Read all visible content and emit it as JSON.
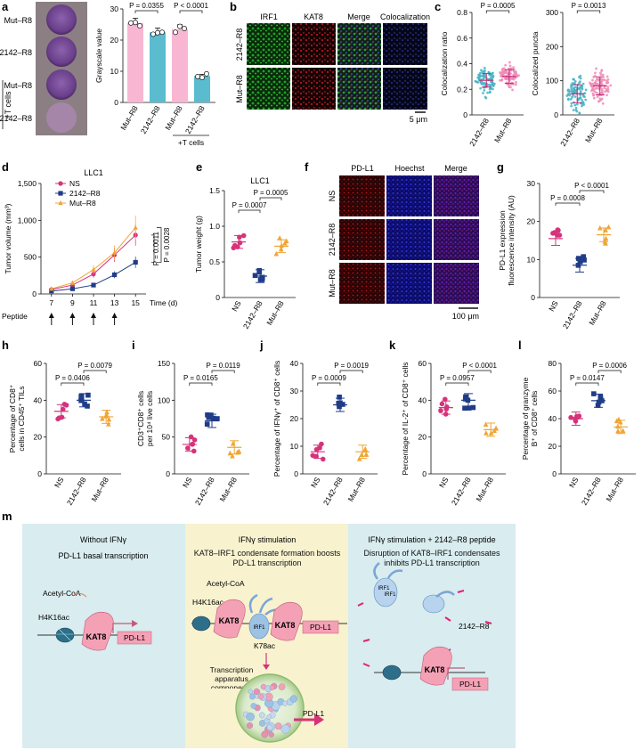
{
  "panels": {
    "a": {
      "letter": "a",
      "well_labels": [
        "Mut–R8",
        "2142–R8",
        "Mut–R8",
        "2142–R8"
      ],
      "tcells_label": "+T cells",
      "colors": {
        "pink": "#f8b6d2",
        "teal": "#5bbcd0",
        "well": "#6a3f8a"
      },
      "chart_data": {
        "type": "bar",
        "categories": [
          "Mut–R8",
          "2142–R8",
          "Mut–R8",
          "2142–R8"
        ],
        "values": [
          25.5,
          22.5,
          23.5,
          8.5
        ],
        "ylabel": "Grayscale value",
        "ylim": [
          0,
          30
        ],
        "yticks": [
          "0",
          "10",
          "20",
          "30"
        ],
        "xgroup_label": "+T cells",
        "annotations": [
          "P = 0.0355",
          "P < 0.0001"
        ]
      }
    },
    "b": {
      "letter": "b",
      "col_labels": [
        "IRF1",
        "KAT8",
        "Merge",
        "Colocalization"
      ],
      "row_labels": [
        "2142–R8",
        "Mut–R8"
      ],
      "scale_label": "5 μm"
    },
    "c": {
      "letter": "c",
      "charts": [
        {
          "type": "scatter",
          "categories": [
            "2142–R8",
            "Mut–R8"
          ],
          "means": [
            0.27,
            0.3
          ],
          "ylabel": "Colocalization ratio",
          "ylim": [
            0,
            0.8
          ],
          "yticks": [
            "0",
            "0.2",
            "0.4",
            "0.6",
            "0.8"
          ],
          "annotation": "P = 0.0005"
        },
        {
          "type": "scatter",
          "categories": [
            "2142–R8",
            "Mut–R8"
          ],
          "means": [
            62,
            85
          ],
          "ylabel": "Colocalized puncta",
          "ylim": [
            0,
            300
          ],
          "yticks": [
            "0",
            "100",
            "200",
            "300"
          ],
          "annotation": "P = 0.0013"
        }
      ]
    },
    "d": {
      "letter": "d",
      "chart_data": {
        "type": "line",
        "title": "LLC1",
        "x": [
          7,
          9,
          11,
          13,
          15
        ],
        "xticks": [
          "7",
          "9",
          "11",
          "13",
          "15"
        ],
        "series": [
          {
            "name": "NS",
            "values": [
              60,
              120,
              270,
              530,
              800
            ],
            "color": "#d6337a"
          },
          {
            "name": "2142–R8",
            "values": [
              40,
              70,
              120,
              260,
              430
            ],
            "color": "#1f3c88"
          },
          {
            "name": "Mut–R8",
            "values": [
              70,
              150,
              330,
              560,
              900
            ],
            "color": "#f0a535"
          }
        ],
        "ylabel": "Tumor volume (mm³)",
        "ylim": [
          0,
          1500
        ],
        "yticks": [
          "0",
          "500",
          "1,000",
          "1,500"
        ],
        "xlabel": "Time (d)",
        "peptide_label": "Peptide",
        "annotations": [
          "P = 0.0011",
          "P = 0.0028"
        ]
      }
    },
    "e": {
      "letter": "e",
      "chart_data": {
        "type": "scatter",
        "title": "LLC1",
        "categories": [
          "NS",
          "2142–R8",
          "Mut–R8"
        ],
        "means": [
          0.78,
          0.3,
          0.72
        ],
        "ylabel": "Tumor weight (g)",
        "ylim": [
          0,
          1.5
        ],
        "yticks": [
          "0",
          "0.5",
          "1.0",
          "1.5"
        ],
        "annotations": [
          "P = 0.0007",
          "P = 0.0005"
        ]
      }
    },
    "f": {
      "letter": "f",
      "col_labels": [
        "PD-L1",
        "Hoechst",
        "Merge"
      ],
      "row_labels": [
        "NS",
        "2142–R8",
        "Mut–R8"
      ],
      "scale_label": "100 μm"
    },
    "g": {
      "letter": "g",
      "chart_data": {
        "type": "scatter",
        "categories": [
          "NS",
          "2142–R8",
          "Mut–R8"
        ],
        "means": [
          15.5,
          8.5,
          16.5
        ],
        "ylabel": "PD-L1 expression fluorescence intensity (AU)",
        "ylim": [
          0,
          30
        ],
        "yticks": [
          "0",
          "10",
          "20",
          "30"
        ],
        "annotations": [
          "P = 0.0008",
          "P < 0.0001"
        ]
      }
    },
    "h": {
      "letter": "h",
      "chart_data": {
        "type": "scatter",
        "categories": [
          "NS",
          "2142–R8",
          "Mut–R8"
        ],
        "means": [
          34,
          40,
          31
        ],
        "ylabel": "Percentage of CD8⁺ cells in CD45⁺ TILs",
        "ylim": [
          0,
          60
        ],
        "yticks": [
          "0",
          "20",
          "40",
          "60"
        ],
        "annotations": [
          "P = 0.0406",
          "P = 0.0079"
        ]
      }
    },
    "i": {
      "letter": "i",
      "chart_data": {
        "type": "scatter",
        "categories": [
          "NS",
          "2142–R8",
          "Mut–R8"
        ],
        "means": [
          40,
          72,
          36
        ],
        "ylabel": "CD3⁺CD8⁺ cells per 10⁴ live cells",
        "ylim": [
          0,
          150
        ],
        "yticks": [
          "0",
          "50",
          "100",
          "150"
        ],
        "annotations": [
          "P = 0.0165",
          "P = 0.0119"
        ]
      }
    },
    "j": {
      "letter": "j",
      "chart_data": {
        "type": "scatter",
        "categories": [
          "NS",
          "2142–R8",
          "Mut–R8"
        ],
        "means": [
          8,
          25,
          8
        ],
        "ylabel": "Percentage of IFNγ⁺ of CD8⁺ cells",
        "ylim": [
          0,
          40
        ],
        "yticks": [
          "0",
          "10",
          "20",
          "30",
          "40"
        ],
        "annotations": [
          "P = 0.0009",
          "P = 0.0019"
        ]
      }
    },
    "k": {
      "letter": "k",
      "chart_data": {
        "type": "scatter",
        "categories": [
          "NS",
          "2142–R8",
          "Mut–R8"
        ],
        "means": [
          36,
          40,
          24
        ],
        "ylabel": "Percentage of IL-2⁺ of CD8⁺ cells",
        "ylim": [
          0,
          60
        ],
        "yticks": [
          "0",
          "20",
          "40",
          "60"
        ],
        "annotations": [
          "P = 0.0957",
          "P < 0.0001"
        ]
      }
    },
    "l": {
      "letter": "l",
      "chart_data": {
        "type": "scatter",
        "categories": [
          "NS",
          "2142–R8",
          "Mut–R8"
        ],
        "means": [
          40,
          53,
          34
        ],
        "ylabel": "Percentage of granzyme B⁺ of CD8⁺ cells",
        "ylim": [
          0,
          80
        ],
        "yticks": [
          "0",
          "20",
          "40",
          "60",
          "80"
        ],
        "annotations": [
          "P = 0.0147",
          "P = 0.0006"
        ]
      }
    },
    "m": {
      "letter": "m",
      "sections": [
        {
          "title": "Without IFNγ",
          "subtitle": "PD-L1 basal transcription",
          "bg": "#d9ecef"
        },
        {
          "title": "IFNγ stimulation",
          "subtitle": "KAT8–IRF1 condensate formation boosts PD-L1 transcription",
          "bg": "#f8f2cf"
        },
        {
          "title": "IFNγ stimulation + 2142–R8 peptide",
          "subtitle": "Disruption of KAT8–IRF1 condensates inhibits PD-L1 transcription",
          "bg": "#d9ecef"
        }
      ],
      "labels": {
        "acetyl_coa": "Acetyl-CoA",
        "h4k16ac": "H4K16ac",
        "kat8": "KAT8",
        "pdl1": "PD-L1",
        "irf1": "IRF1",
        "k78ac": "K78ac",
        "transcription": "Transcription apparatus components",
        "peptide": "2142–R8"
      }
    }
  }
}
